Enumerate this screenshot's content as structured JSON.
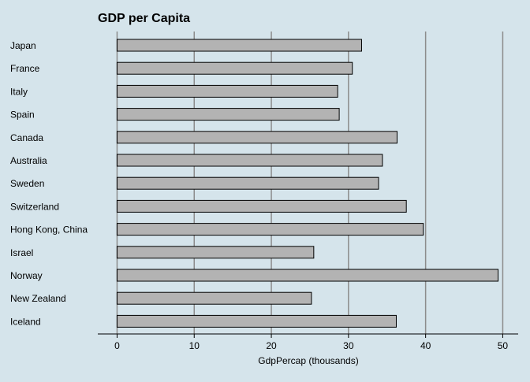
{
  "chart_data": {
    "type": "bar",
    "orientation": "horizontal",
    "title": "GDP per Capita",
    "xlabel": "GdpPercap (thousands)",
    "ylabel": "",
    "categories": [
      "Japan",
      "France",
      "Italy",
      "Spain",
      "Canada",
      "Australia",
      "Sweden",
      "Switzerland",
      "Hong Kong, China",
      "Israel",
      "Norway",
      "New Zealand",
      "Iceland"
    ],
    "values": [
      31.7,
      30.5,
      28.6,
      28.8,
      36.3,
      34.4,
      33.9,
      37.5,
      39.7,
      25.5,
      49.4,
      25.2,
      36.2
    ],
    "xlim": [
      -2.5,
      52
    ],
    "xticks": [
      0,
      10,
      20,
      30,
      40,
      50
    ],
    "grid": true,
    "legend": "none",
    "colors": {
      "background": "#d5e4eb",
      "bar_fill": "#b3b3b3",
      "bar_stroke": "#000000",
      "grid": "#8c8c8c",
      "axis": "#000000",
      "text": "#000000"
    }
  }
}
